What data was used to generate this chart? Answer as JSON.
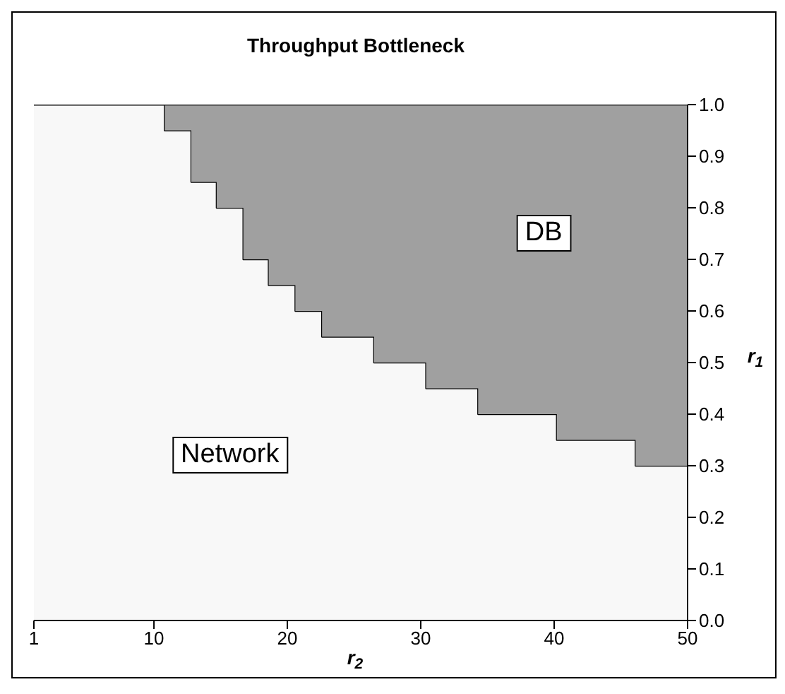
{
  "chart_data": {
    "type": "area",
    "stacked": true,
    "line_style": "step",
    "title": "Throughput Bottleneck",
    "xlabel": "r$_{2}$",
    "ylabel": "r$_{1}$",
    "x": [
      1,
      10.8,
      12.8,
      14.7,
      16.7,
      18.6,
      20.6,
      22.6,
      26.5,
      30.4,
      34.3,
      40.2,
      46.1,
      50
    ],
    "series": [
      {
        "color": "#f8f8f8",
        "values": [
          1,
          0.95,
          0.85,
          0.8,
          0.7,
          0.65,
          0.6,
          0.55,
          0.5,
          0.45,
          0.4,
          0.35,
          0.3,
          0.3
        ]
      },
      {
        "color": "#a0a0a0",
        "values": [
          0,
          0.05,
          0.15,
          0.2,
          0.3,
          0.35,
          0.4,
          0.45,
          0.5,
          0.55,
          0.6,
          0.65,
          0.7,
          0.7
        ]
      }
    ],
    "xlim": [
      1,
      50
    ],
    "xticks": [
      1,
      10,
      20,
      30,
      40,
      50
    ],
    "ylim": [
      0,
      1
    ],
    "yticks": [
      {
        "value": 0,
        "label": "0.0"
      },
      0.1,
      0.2,
      0.3,
      0.4,
      0.5,
      0.6,
      0.7,
      0.8,
      0.9,
      {
        "value": 1,
        "label": "1.0"
      }
    ],
    "annotations": [
      "DB",
      "Network"
    ]
  }
}
